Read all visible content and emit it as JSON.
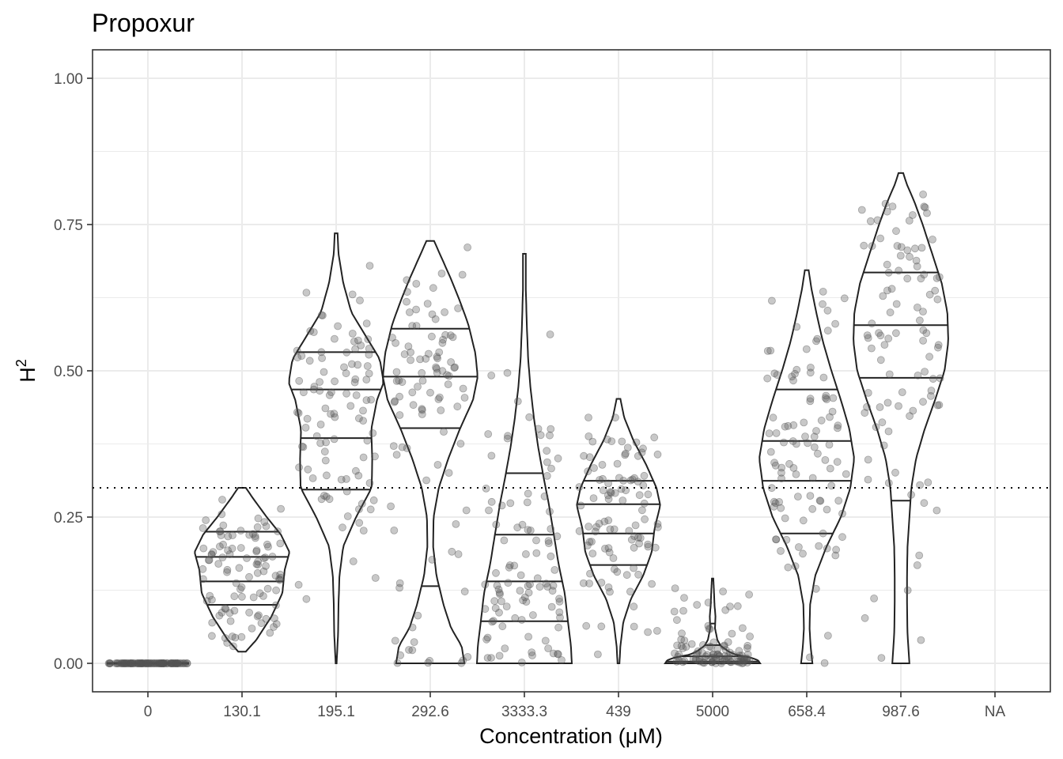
{
  "chart_data": {
    "type": "violin",
    "title": "Propoxur",
    "xlabel": "Concentration (μM)",
    "ylabel": "H",
    "ylabel_superscript": "2",
    "ylim": [
      -0.05,
      1.05
    ],
    "yticks": [
      "0.00",
      "0.25",
      "0.50",
      "0.75",
      "1.00"
    ],
    "ytick_values": [
      0,
      0.25,
      0.5,
      0.75,
      1.0
    ],
    "reference_line": 0.3,
    "grid": true,
    "categories": [
      "0",
      "130.1",
      "195.1",
      "292.6",
      "3333.3",
      "439",
      "5000",
      "658.4",
      "987.6",
      "NA"
    ],
    "series": [
      {
        "category": "0",
        "min": 0,
        "max": 0,
        "quantiles": [],
        "n": 100,
        "profile": [
          [
            0,
            1
          ]
        ]
      },
      {
        "category": "130.1",
        "min": 0.02,
        "max": 0.3,
        "quantiles": [
          0.1,
          0.14,
          0.182,
          0.225
        ],
        "profile": [
          [
            0.02,
            0.08
          ],
          [
            0.04,
            0.3
          ],
          [
            0.08,
            0.62
          ],
          [
            0.12,
            0.85
          ],
          [
            0.16,
            0.9
          ],
          [
            0.19,
            1.0
          ],
          [
            0.22,
            0.82
          ],
          [
            0.25,
            0.52
          ],
          [
            0.28,
            0.25
          ],
          [
            0.3,
            0.08
          ]
        ]
      },
      {
        "category": "195.1",
        "min": 0,
        "max": 0.735,
        "quantiles": [
          0.297,
          0.385,
          0.468,
          0.532
        ],
        "profile": [
          [
            0,
            0.01
          ],
          [
            0.05,
            0.04
          ],
          [
            0.1,
            0.05
          ],
          [
            0.15,
            0.07
          ],
          [
            0.2,
            0.15
          ],
          [
            0.25,
            0.42
          ],
          [
            0.3,
            0.75
          ],
          [
            0.35,
            0.76
          ],
          [
            0.4,
            0.74
          ],
          [
            0.45,
            0.86
          ],
          [
            0.48,
            1.0
          ],
          [
            0.52,
            0.92
          ],
          [
            0.56,
            0.62
          ],
          [
            0.6,
            0.32
          ],
          [
            0.65,
            0.15
          ],
          [
            0.7,
            0.05
          ],
          [
            0.735,
            0.03
          ]
        ]
      },
      {
        "category": "292.6",
        "min": 0,
        "max": 0.722,
        "quantiles": [
          0.132,
          0.402,
          0.49,
          0.572
        ],
        "profile": [
          [
            0,
            0.72
          ],
          [
            0.03,
            0.66
          ],
          [
            0.06,
            0.44
          ],
          [
            0.1,
            0.28
          ],
          [
            0.15,
            0.13
          ],
          [
            0.2,
            0.06
          ],
          [
            0.25,
            0.07
          ],
          [
            0.3,
            0.18
          ],
          [
            0.35,
            0.38
          ],
          [
            0.4,
            0.62
          ],
          [
            0.45,
            0.9
          ],
          [
            0.49,
            1.0
          ],
          [
            0.53,
            0.95
          ],
          [
            0.58,
            0.8
          ],
          [
            0.62,
            0.62
          ],
          [
            0.66,
            0.42
          ],
          [
            0.7,
            0.2
          ],
          [
            0.722,
            0.08
          ]
        ]
      },
      {
        "category": "3333.3",
        "min": 0,
        "max": 0.7,
        "quantiles": [
          0.072,
          0.14,
          0.22,
          0.325
        ],
        "profile": [
          [
            0,
            1.0
          ],
          [
            0.03,
            0.98
          ],
          [
            0.07,
            0.92
          ],
          [
            0.12,
            0.85
          ],
          [
            0.17,
            0.72
          ],
          [
            0.22,
            0.62
          ],
          [
            0.27,
            0.52
          ],
          [
            0.32,
            0.4
          ],
          [
            0.37,
            0.29
          ],
          [
            0.42,
            0.2
          ],
          [
            0.47,
            0.13
          ],
          [
            0.52,
            0.08
          ],
          [
            0.58,
            0.05
          ],
          [
            0.64,
            0.03
          ],
          [
            0.7,
            0.03
          ]
        ]
      },
      {
        "category": "439",
        "min": 0,
        "max": 0.452,
        "quantiles": [
          0.168,
          0.222,
          0.272,
          0.312
        ],
        "profile": [
          [
            0,
            0.02
          ],
          [
            0.03,
            0.04
          ],
          [
            0.07,
            0.1
          ],
          [
            0.11,
            0.26
          ],
          [
            0.15,
            0.52
          ],
          [
            0.19,
            0.7
          ],
          [
            0.23,
            0.76
          ],
          [
            0.27,
            0.88
          ],
          [
            0.3,
            0.8
          ],
          [
            0.34,
            0.58
          ],
          [
            0.38,
            0.32
          ],
          [
            0.42,
            0.12
          ],
          [
            0.452,
            0.04
          ]
        ]
      },
      {
        "category": "5000",
        "min": 0,
        "max": 0.145,
        "quantiles": [
          0.003,
          0.012,
          0.031,
          0.068
        ],
        "profile": [
          [
            0,
            1.0
          ],
          [
            0.005,
            0.96
          ],
          [
            0.01,
            0.8
          ],
          [
            0.015,
            0.48
          ],
          [
            0.02,
            0.34
          ],
          [
            0.03,
            0.17
          ],
          [
            0.04,
            0.1
          ],
          [
            0.06,
            0.05
          ],
          [
            0.08,
            0.06
          ],
          [
            0.1,
            0.04
          ],
          [
            0.12,
            0.03
          ],
          [
            0.145,
            0.015
          ]
        ]
      },
      {
        "category": "658.4",
        "min": 0,
        "max": 0.672,
        "quantiles": [
          0.222,
          0.312,
          0.38,
          0.468
        ],
        "profile": [
          [
            0,
            0.12
          ],
          [
            0.03,
            0.08
          ],
          [
            0.06,
            0.06
          ],
          [
            0.1,
            0.07
          ],
          [
            0.15,
            0.18
          ],
          [
            0.2,
            0.42
          ],
          [
            0.25,
            0.72
          ],
          [
            0.3,
            0.92
          ],
          [
            0.35,
            1.0
          ],
          [
            0.4,
            0.9
          ],
          [
            0.45,
            0.72
          ],
          [
            0.5,
            0.52
          ],
          [
            0.55,
            0.34
          ],
          [
            0.6,
            0.2
          ],
          [
            0.64,
            0.1
          ],
          [
            0.672,
            0.04
          ]
        ]
      },
      {
        "category": "987.6",
        "min": 0,
        "max": 0.838,
        "quantiles": [
          0.278,
          0.488,
          0.578,
          0.668
        ],
        "profile": [
          [
            0,
            0.18
          ],
          [
            0.05,
            0.14
          ],
          [
            0.1,
            0.13
          ],
          [
            0.15,
            0.13
          ],
          [
            0.2,
            0.14
          ],
          [
            0.25,
            0.18
          ],
          [
            0.3,
            0.22
          ],
          [
            0.35,
            0.32
          ],
          [
            0.4,
            0.5
          ],
          [
            0.45,
            0.72
          ],
          [
            0.5,
            0.92
          ],
          [
            0.55,
            1.0
          ],
          [
            0.6,
            0.98
          ],
          [
            0.65,
            0.86
          ],
          [
            0.7,
            0.66
          ],
          [
            0.75,
            0.46
          ],
          [
            0.79,
            0.28
          ],
          [
            0.82,
            0.12
          ],
          [
            0.838,
            0.05
          ]
        ]
      },
      {
        "category": "NA",
        "min": null,
        "max": null,
        "quantiles": [],
        "profile": []
      }
    ]
  }
}
